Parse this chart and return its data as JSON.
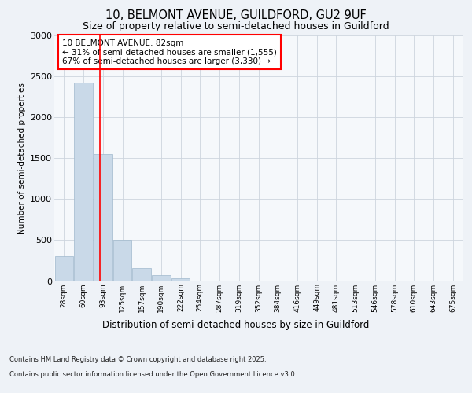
{
  "title_line1": "10, BELMONT AVENUE, GUILDFORD, GU2 9UF",
  "title_line2": "Size of property relative to semi-detached houses in Guildford",
  "xlabel": "Distribution of semi-detached houses by size in Guildford",
  "ylabel": "Number of semi-detached properties",
  "categories": [
    "28sqm",
    "60sqm",
    "93sqm",
    "125sqm",
    "157sqm",
    "190sqm",
    "222sqm",
    "254sqm",
    "287sqm",
    "319sqm",
    "352sqm",
    "384sqm",
    "416sqm",
    "449sqm",
    "481sqm",
    "513sqm",
    "546sqm",
    "578sqm",
    "610sqm",
    "643sqm",
    "675sqm"
  ],
  "values": [
    300,
    2420,
    1550,
    500,
    155,
    70,
    30,
    5,
    0,
    0,
    0,
    0,
    0,
    0,
    0,
    0,
    0,
    0,
    0,
    0,
    0
  ],
  "bar_color": "#c9d9e8",
  "bar_edge_color": "#a0b8cc",
  "red_line_x": 1.85,
  "annotation_title": "10 BELMONT AVENUE: 82sqm",
  "annotation_line1": "← 31% of semi-detached houses are smaller (1,555)",
  "annotation_line2": "67% of semi-detached houses are larger (3,330) →",
  "ylim": [
    0,
    3000
  ],
  "yticks": [
    0,
    500,
    1000,
    1500,
    2000,
    2500,
    3000
  ],
  "footer_line1": "Contains HM Land Registry data © Crown copyright and database right 2025.",
  "footer_line2": "Contains public sector information licensed under the Open Government Licence v3.0.",
  "background_color": "#eef2f7",
  "plot_bg_color": "#f5f8fb",
  "grid_color": "#cdd5de"
}
